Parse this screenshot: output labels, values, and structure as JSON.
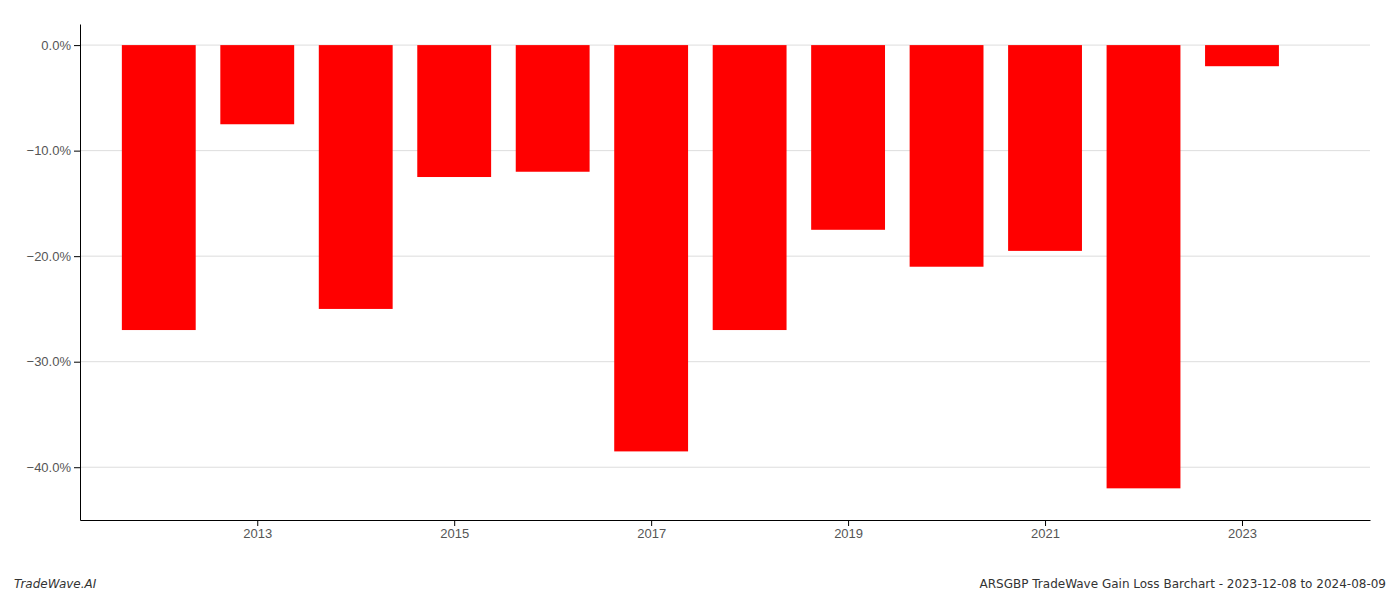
{
  "chart_data": {
    "type": "bar",
    "x": [
      2012,
      2013,
      2014,
      2015,
      2016,
      2017,
      2018,
      2019,
      2020,
      2021,
      2022,
      2023
    ],
    "values": [
      -27.0,
      -7.5,
      -25.0,
      -12.5,
      -12.0,
      -38.5,
      -27.0,
      -17.5,
      -21.0,
      -19.5,
      -42.0,
      -2.0
    ],
    "color": "#ff0000",
    "xlim": [
      2011.2,
      2024.3
    ],
    "xticks": [
      2013,
      2015,
      2017,
      2019,
      2021,
      2023
    ],
    "ylim": [
      -45,
      2
    ],
    "yticks": [
      {
        "value": 0.0,
        "label": "0.0%"
      },
      {
        "value": -10.0,
        "label": "−10.0%"
      },
      {
        "value": -20.0,
        "label": "−20.0%"
      },
      {
        "value": -30.0,
        "label": "−30.0%"
      },
      {
        "value": -40.0,
        "label": "−40.0%"
      }
    ],
    "grid": true,
    "annotations": [
      "TradeWave.AI",
      "ARSGBP TradeWave Gain Loss Barchart - 2023-12-08 to 2024-08-09"
    ]
  }
}
